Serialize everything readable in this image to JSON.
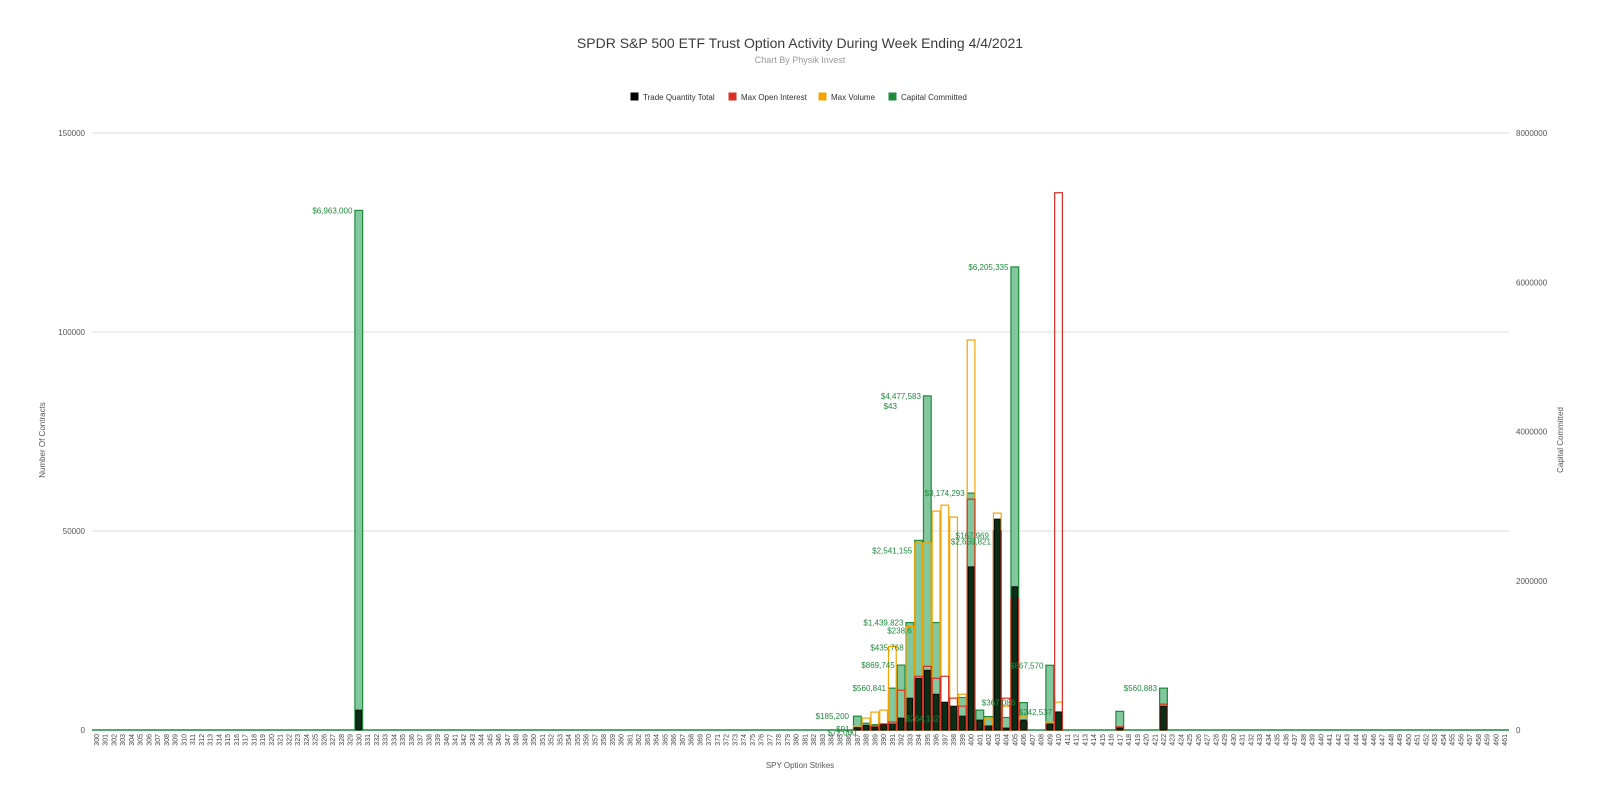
{
  "chart_data": {
    "type": "bar",
    "title": "SPDR S&P 500 ETF Trust Option Activity During Week Ending 4/4/2021",
    "subtitle": "Chart By Physik Invest",
    "xlabel": "SPY Option Strikes",
    "ylabel_left": "Number Of Contracts",
    "ylabel_right": "Capital Committed",
    "ylim_left": [
      0,
      150000
    ],
    "ylim_right": [
      0,
      8000000
    ],
    "yticks_left": [
      "0",
      "50000",
      "100000",
      "150000"
    ],
    "yticks_right": [
      "0",
      "2000000",
      "4000000",
      "6000000",
      "8000000"
    ],
    "grid": true,
    "legend_position": "top",
    "x_range": [
      300,
      461
    ],
    "colors": {
      "trade_quantity": "#000000",
      "max_open_interest": "#d93025",
      "max_volume": "#f4a300",
      "capital_committed": "#1e8a3c"
    },
    "series": [
      {
        "name": "Trade Quantity Total",
        "axis": "left",
        "points": [
          [
            330,
            5000
          ],
          [
            387,
            600
          ],
          [
            388,
            1200
          ],
          [
            389,
            700
          ],
          [
            390,
            1300
          ],
          [
            391,
            1500
          ],
          [
            392,
            3000
          ],
          [
            393,
            8000
          ],
          [
            394,
            13000
          ],
          [
            395,
            15000
          ],
          [
            396,
            9000
          ],
          [
            397,
            7000
          ],
          [
            398,
            6000
          ],
          [
            399,
            3500
          ],
          [
            400,
            41000
          ],
          [
            401,
            2500
          ],
          [
            402,
            1000
          ],
          [
            403,
            53000
          ],
          [
            404,
            500
          ],
          [
            405,
            36000
          ],
          [
            406,
            2500
          ],
          [
            409,
            1500
          ],
          [
            410,
            4500
          ],
          [
            417,
            500
          ],
          [
            422,
            6000
          ]
        ]
      },
      {
        "name": "Max Open Interest",
        "axis": "left",
        "points": [
          [
            387,
            500
          ],
          [
            388,
            800
          ],
          [
            389,
            1000
          ],
          [
            390,
            1500
          ],
          [
            391,
            2000
          ],
          [
            392,
            10000
          ],
          [
            393,
            2000
          ],
          [
            394,
            13500
          ],
          [
            395,
            16000
          ],
          [
            396,
            13000
          ],
          [
            397,
            13500
          ],
          [
            398,
            8000
          ],
          [
            399,
            6000
          ],
          [
            400,
            58000
          ],
          [
            401,
            2000
          ],
          [
            402,
            1000
          ],
          [
            403,
            50000
          ],
          [
            404,
            8000
          ],
          [
            405,
            33000
          ],
          [
            406,
            2000
          ],
          [
            409,
            1500
          ],
          [
            410,
            135000
          ],
          [
            417,
            800
          ],
          [
            422,
            6500
          ]
        ]
      },
      {
        "name": "Max Volume",
        "axis": "left",
        "points": [
          [
            387,
            1000
          ],
          [
            388,
            3000
          ],
          [
            389,
            4500
          ],
          [
            390,
            5000
          ],
          [
            391,
            21000
          ],
          [
            392,
            10000
          ],
          [
            393,
            26000
          ],
          [
            394,
            47000
          ],
          [
            395,
            47000
          ],
          [
            396,
            55000
          ],
          [
            397,
            56500
          ],
          [
            398,
            53500
          ],
          [
            399,
            9000
          ],
          [
            400,
            98000
          ],
          [
            401,
            2000
          ],
          [
            402,
            3000
          ],
          [
            403,
            54500
          ],
          [
            404,
            6000
          ],
          [
            405,
            32000
          ],
          [
            406,
            3500
          ],
          [
            409,
            2000
          ],
          [
            410,
            7000
          ],
          [
            417,
            600
          ],
          [
            422,
            6500
          ]
        ]
      },
      {
        "name": "Capital Committed",
        "axis": "right",
        "points": [
          [
            330,
            6963000
          ],
          [
            387,
            185200
          ],
          [
            388,
            91000
          ],
          [
            389,
            72000
          ],
          [
            390,
            82000
          ],
          [
            391,
            560841
          ],
          [
            392,
            869745
          ],
          [
            393,
            1439823
          ],
          [
            394,
            2541155
          ],
          [
            395,
            4477583
          ],
          [
            396,
            1439823
          ],
          [
            397,
            235000
          ],
          [
            398,
            264162
          ],
          [
            399,
            435763
          ],
          [
            400,
            3174293
          ],
          [
            401,
            267000
          ],
          [
            402,
            180000
          ],
          [
            403,
            2659821
          ],
          [
            404,
            167969
          ],
          [
            405,
            6205335
          ],
          [
            406,
            367086
          ],
          [
            409,
            867570
          ],
          [
            410,
            242537
          ],
          [
            417,
            250000
          ],
          [
            422,
            560883
          ]
        ]
      }
    ],
    "annotations": [
      {
        "x": 330,
        "text": "$6,963,000"
      },
      {
        "x": 405,
        "text": "$6,205,335"
      },
      {
        "x": 395,
        "text": "$4,477,583"
      },
      {
        "x": 400,
        "text": "$3,174,293"
      },
      {
        "x": 403,
        "text": "$2,659,821"
      },
      {
        "x": 394,
        "text": "$2,541,155"
      },
      {
        "x": 393,
        "text": "$1,439,823"
      },
      {
        "x": 392,
        "text": "$869,745"
      },
      {
        "x": 409,
        "text": "$867,570"
      },
      {
        "x": 391,
        "text": "$560,841"
      },
      {
        "x": 422,
        "text": "$560,883"
      },
      {
        "x": 395,
        "text": "$43"
      },
      {
        "x": 396,
        "text": "$435,768"
      },
      {
        "x": 406,
        "text": "$367,086"
      },
      {
        "x": 398,
        "text": "$264,162"
      },
      {
        "x": 410,
        "text": "$242,537"
      },
      {
        "x": 387,
        "text": "$185,200"
      },
      {
        "x": 403,
        "text": "$167,969"
      },
      {
        "x": 388,
        "text": "$91,"
      },
      {
        "x": 389,
        "text": "$72,000"
      },
      {
        "x": 396,
        "text": "$238,6"
      }
    ]
  }
}
